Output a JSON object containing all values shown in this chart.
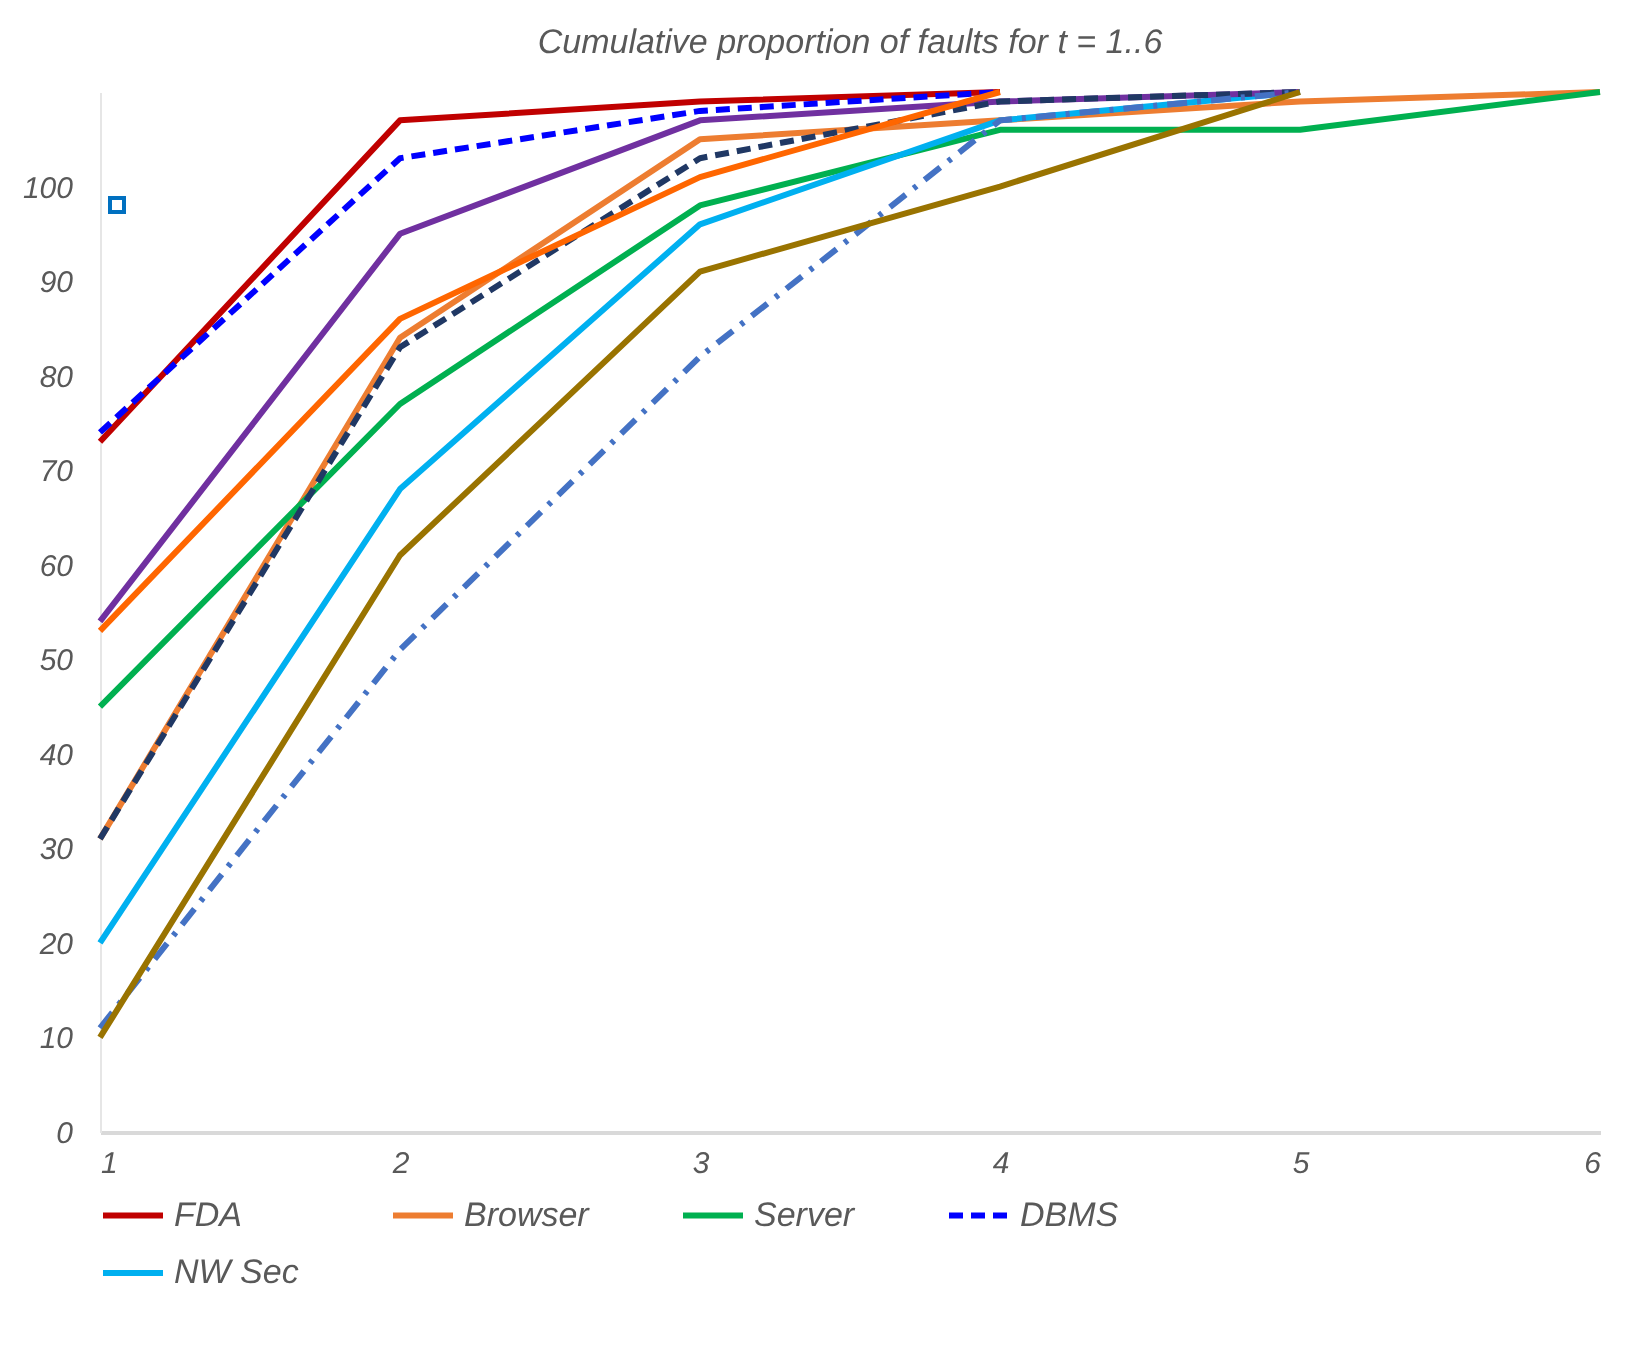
{
  "chart_data": {
    "type": "line",
    "title": "Cumulative proportion of faults for t = 1..6",
    "x": [
      1,
      2,
      3,
      4,
      5,
      6
    ],
    "xlim": [
      1,
      6
    ],
    "xticks": [
      1,
      2,
      3,
      4,
      5,
      6
    ],
    "ylim": [
      0,
      110
    ],
    "yticks": [
      0,
      10,
      20,
      30,
      40,
      50,
      60,
      70,
      80,
      90,
      100
    ],
    "grid": false,
    "legend": "bottom",
    "marker": "none",
    "series": [
      {
        "name": "FDA",
        "color": "#c00000",
        "line_style": "solid",
        "values": [
          73,
          107,
          109,
          110,
          null,
          null
        ]
      },
      {
        "name": "Browser",
        "color": "#ed7d31",
        "line_style": "solid",
        "values": [
          31,
          84,
          105,
          107,
          109,
          110
        ]
      },
      {
        "name": "Server",
        "color": "#00b050",
        "line_style": "solid",
        "values": [
          45,
          77,
          98,
          106,
          106,
          110
        ]
      },
      {
        "name": "DBMS",
        "color": "#0000ff",
        "line_style": "dashed",
        "values": [
          74,
          103,
          108,
          110,
          null,
          null
        ]
      },
      {
        "name": "NW Sec",
        "color": "#00b0f0",
        "line_style": "solid",
        "values": [
          20,
          68,
          96,
          107,
          110,
          null
        ]
      },
      {
        "color": "#7030a0",
        "line_style": "solid",
        "values": [
          54,
          95,
          107,
          109,
          110,
          null
        ]
      },
      {
        "color": "#203864",
        "line_style": "dashed",
        "values": [
          31,
          83,
          103,
          109,
          110,
          null
        ]
      },
      {
        "color": "#4472c4",
        "line_style": "dashdot",
        "values": [
          11,
          51,
          82,
          107,
          110,
          null
        ]
      },
      {
        "color": "#ff6600",
        "line_style": "solid",
        "values": [
          53,
          86,
          101,
          110,
          null,
          null
        ]
      },
      {
        "color": "#997300",
        "line_style": "solid",
        "values": [
          10,
          61,
          91,
          100,
          110,
          null
        ]
      }
    ]
  }
}
